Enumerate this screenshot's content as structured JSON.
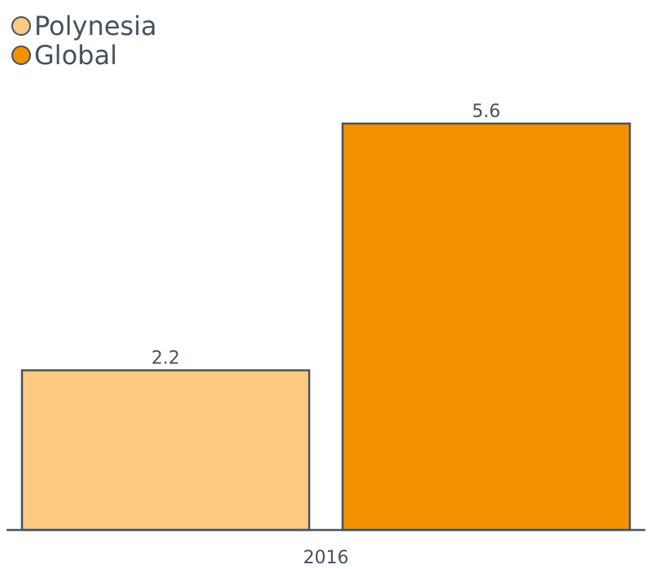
{
  "chart_data": {
    "type": "bar",
    "categories": [
      "2016"
    ],
    "series": [
      {
        "name": "Polynesia",
        "values": [
          2.2
        ],
        "color": "#fcc980"
      },
      {
        "name": "Global",
        "values": [
          5.6
        ],
        "color": "#f39200"
      }
    ],
    "ylim": [
      0,
      5.6
    ],
    "grid": false,
    "legend": "top-left",
    "axis_color": "#44525f"
  }
}
